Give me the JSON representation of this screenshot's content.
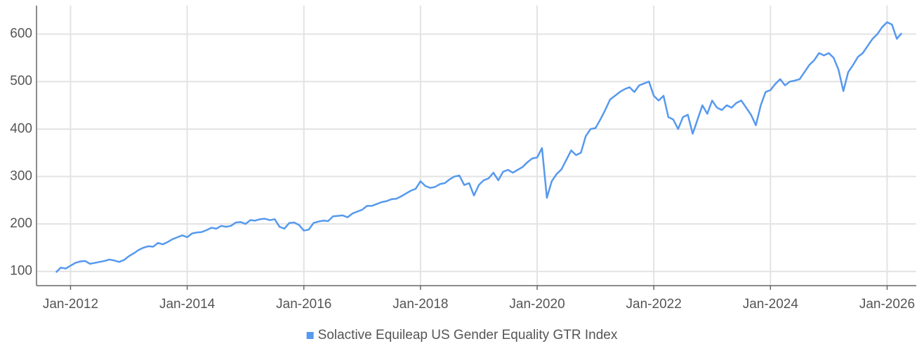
{
  "chart_data": {
    "type": "line",
    "x": [
      "2011-10",
      "2011-11",
      "2011-12",
      "2012-01",
      "2012-02",
      "2012-03",
      "2012-04",
      "2012-05",
      "2012-06",
      "2012-07",
      "2012-08",
      "2012-09",
      "2012-10",
      "2012-11",
      "2012-12",
      "2013-01",
      "2013-02",
      "2013-03",
      "2013-04",
      "2013-05",
      "2013-06",
      "2013-07",
      "2013-08",
      "2013-09",
      "2013-10",
      "2013-11",
      "2013-12",
      "2014-01",
      "2014-02",
      "2014-03",
      "2014-04",
      "2014-05",
      "2014-06",
      "2014-07",
      "2014-08",
      "2014-09",
      "2014-10",
      "2014-11",
      "2014-12",
      "2015-01",
      "2015-02",
      "2015-03",
      "2015-04",
      "2015-05",
      "2015-06",
      "2015-07",
      "2015-08",
      "2015-09",
      "2015-10",
      "2015-11",
      "2015-12",
      "2016-01",
      "2016-02",
      "2016-03",
      "2016-04",
      "2016-05",
      "2016-06",
      "2016-07",
      "2016-08",
      "2016-09",
      "2016-10",
      "2016-11",
      "2016-12",
      "2017-01",
      "2017-02",
      "2017-03",
      "2017-04",
      "2017-05",
      "2017-06",
      "2017-07",
      "2017-08",
      "2017-09",
      "2017-10",
      "2017-11",
      "2017-12",
      "2018-01",
      "2018-02",
      "2018-03",
      "2018-04",
      "2018-05",
      "2018-06",
      "2018-07",
      "2018-08",
      "2018-09",
      "2018-10",
      "2018-11",
      "2018-12",
      "2019-01",
      "2019-02",
      "2019-03",
      "2019-04",
      "2019-05",
      "2019-06",
      "2019-07",
      "2019-08",
      "2019-09",
      "2019-10",
      "2019-11",
      "2019-12",
      "2020-01",
      "2020-02",
      "2020-03",
      "2020-04",
      "2020-05",
      "2020-06",
      "2020-07",
      "2020-08",
      "2020-09",
      "2020-10",
      "2020-11",
      "2020-12",
      "2021-01",
      "2021-02",
      "2021-03",
      "2021-04",
      "2021-05",
      "2021-06",
      "2021-07",
      "2021-08",
      "2021-09",
      "2021-10",
      "2021-11",
      "2021-12",
      "2022-01",
      "2022-02",
      "2022-03",
      "2022-04",
      "2022-05",
      "2022-06",
      "2022-07",
      "2022-08",
      "2022-09",
      "2022-10",
      "2022-11",
      "2022-12",
      "2023-01",
      "2023-02",
      "2023-03",
      "2023-04",
      "2023-05",
      "2023-06",
      "2023-07",
      "2023-08",
      "2023-09",
      "2023-10",
      "2023-11",
      "2023-12",
      "2024-01",
      "2024-02",
      "2024-03",
      "2024-04",
      "2024-05",
      "2024-06",
      "2024-07",
      "2024-08",
      "2024-09",
      "2024-10",
      "2024-11",
      "2024-12",
      "2025-01",
      "2025-02",
      "2025-03",
      "2025-04",
      "2025-05",
      "2025-06",
      "2025-07",
      "2025-08",
      "2025-09",
      "2025-10",
      "2025-11",
      "2025-12",
      "2026-01",
      "2026-02",
      "2026-03",
      "2026-04"
    ],
    "series": [
      {
        "name": "Solactive Equileap US Gender Equality GTR Index",
        "color": "#5699ee",
        "values": [
          98,
          108,
          106,
          112,
          118,
          121,
          122,
          116,
          118,
          120,
          122,
          125,
          123,
          120,
          124,
          132,
          138,
          145,
          150,
          153,
          152,
          160,
          157,
          162,
          168,
          172,
          176,
          172,
          180,
          182,
          183,
          187,
          192,
          190,
          196,
          194,
          196,
          203,
          204,
          200,
          208,
          207,
          210,
          211,
          208,
          210,
          194,
          190,
          202,
          203,
          198,
          186,
          188,
          202,
          205,
          207,
          206,
          216,
          217,
          218,
          214,
          222,
          226,
          230,
          238,
          238,
          242,
          246,
          248,
          252,
          253,
          258,
          264,
          270,
          274,
          290,
          280,
          276,
          278,
          284,
          286,
          294,
          300,
          302,
          282,
          286,
          260,
          282,
          292,
          296,
          308,
          292,
          310,
          314,
          308,
          314,
          320,
          330,
          338,
          340,
          360,
          255,
          290,
          305,
          315,
          335,
          355,
          345,
          350,
          385,
          400,
          402,
          420,
          440,
          462,
          470,
          478,
          484,
          488,
          478,
          492,
          496,
          500,
          470,
          460,
          470,
          425,
          420,
          400,
          425,
          430,
          390,
          420,
          450,
          432,
          460,
          445,
          440,
          450,
          445,
          455,
          460,
          445,
          430,
          408,
          450,
          478,
          482,
          495,
          505,
          492,
          500,
          502,
          505,
          520,
          535,
          545,
          560,
          555,
          560,
          550,
          525,
          480,
          520,
          535,
          552,
          560,
          575,
          590,
          600,
          615,
          625,
          620,
          590,
          602
        ]
      }
    ],
    "xlim": [
      "2011-06",
      "2026-07"
    ],
    "xticks": [
      {
        "value": "2012-01",
        "label": "Jan-2012"
      },
      {
        "value": "2014-01",
        "label": "Jan-2014"
      },
      {
        "value": "2016-01",
        "label": "Jan-2016"
      },
      {
        "value": "2018-01",
        "label": "Jan-2018"
      },
      {
        "value": "2020-01",
        "label": "Jan-2020"
      },
      {
        "value": "2022-01",
        "label": "Jan-2022"
      },
      {
        "value": "2024-01",
        "label": "Jan-2024"
      },
      {
        "value": "2026-01",
        "label": "Jan-2026"
      }
    ],
    "ylim": [
      70,
      660
    ],
    "yticks": [
      100,
      200,
      300,
      400,
      500,
      600
    ],
    "grid": true,
    "legend": "bottom"
  }
}
